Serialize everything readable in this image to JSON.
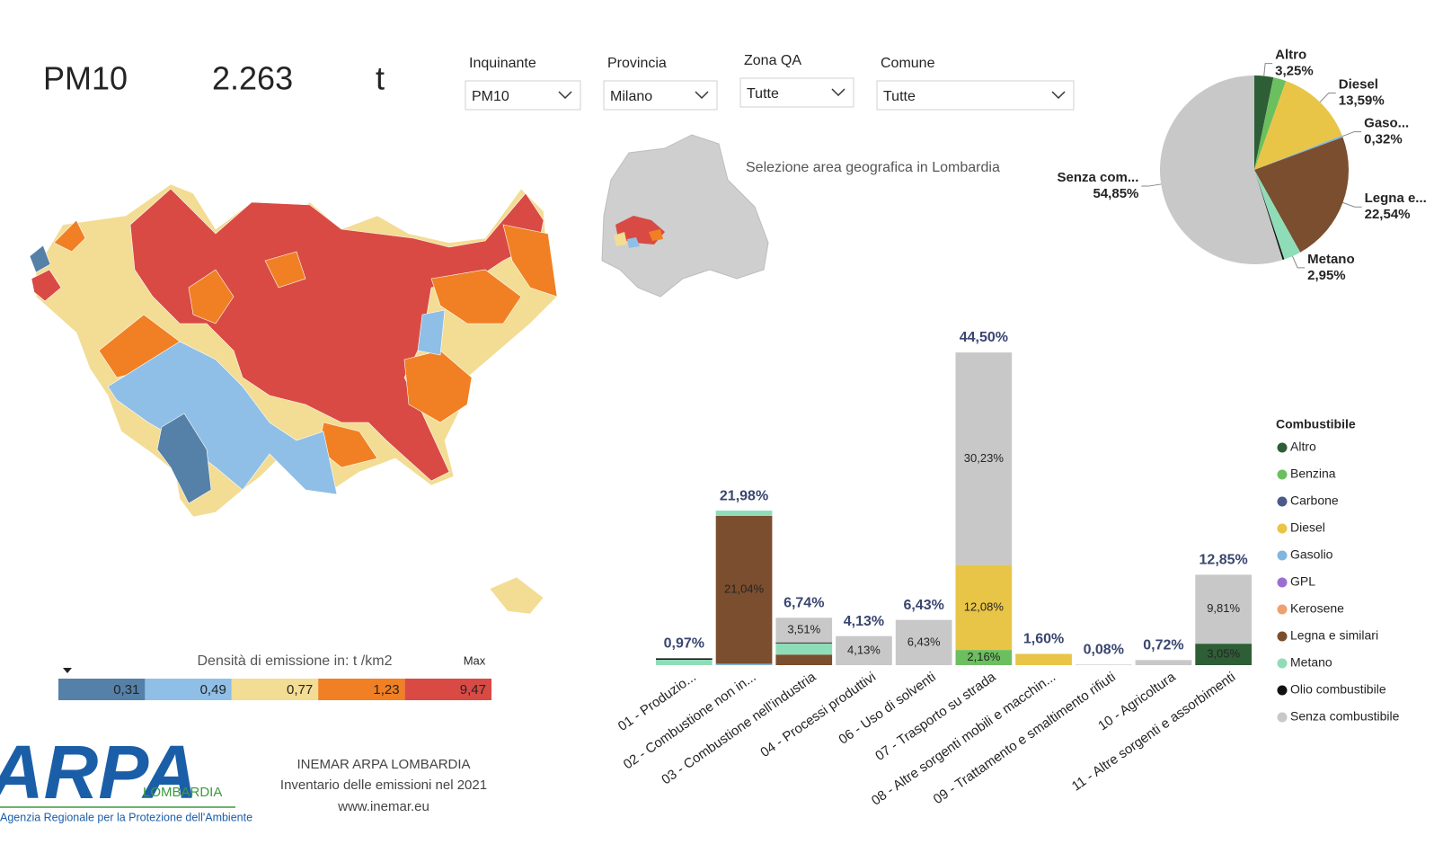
{
  "kpi": {
    "pollutant": "PM10",
    "value": "2.263",
    "unit": "t"
  },
  "filters": [
    {
      "label": "Inquinante",
      "value": "PM10"
    },
    {
      "label": "Provincia",
      "value": "Milano"
    },
    {
      "label": "Zona QA",
      "value": "Tutte"
    },
    {
      "label": "Comune",
      "value": "Tutte"
    }
  ],
  "minimap_caption": "Selezione area geografica in Lombardia",
  "map_legend": {
    "title": "Densità di emissione in: t  /km2",
    "max_label": "Max",
    "classes": [
      {
        "label": "0,31",
        "color": "#5580a8"
      },
      {
        "label": "0,49",
        "color": "#8fbfe6"
      },
      {
        "label": "0,77",
        "color": "#f3dc93"
      },
      {
        "label": "1,23",
        "color": "#f08023"
      },
      {
        "label": "9,47",
        "color": "#d94a44"
      }
    ]
  },
  "footer": {
    "logo": "ARPA",
    "logo_region": "LOMBARDIA",
    "logo_caption": "Agenzia Regionale per la Protezione dell'Ambiente",
    "lines": [
      "INEMAR ARPA LOMBARDIA",
      "Inventario delle emissioni nel 2021",
      "www.inemar.eu"
    ]
  },
  "chart_data": [
    {
      "type": "pie",
      "labels": [
        "Altro",
        null,
        "Diesel",
        "Gaso...",
        "Legna e...",
        "Metano",
        null,
        "Senza com..."
      ],
      "values": [
        3.25,
        2.2,
        13.59,
        0.32,
        22.54,
        2.95,
        0.3,
        54.85
      ],
      "value_labels": [
        "3,25%",
        null,
        "13,59%",
        "0,32%",
        "22,54%",
        "2,95%",
        null,
        "54,85%"
      ],
      "colors": [
        "#2e5e36",
        "#6cbf5f",
        "#e8c547",
        "#7fb6e0",
        "#7a4e2e",
        "#8fdcb8",
        "#111111",
        "#c8c8c8"
      ]
    },
    {
      "type": "bar",
      "stacked": true,
      "categories": [
        "01 - Produzio...",
        "02 - Combustione non in...",
        "03 - Combustione nell'industria",
        "04 - Processi produttivi",
        "06 - Uso di solventi",
        "07 - Trasporto su strada",
        "08 - Altre sorgenti mobili e macchin...",
        "09 - Trattamento e smaltimento rifiuti",
        "10 - Agricoltura",
        "11 - Altre sorgenti e assorbimenti"
      ],
      "totals": [
        0.97,
        21.98,
        6.74,
        4.13,
        6.43,
        44.5,
        1.6,
        0.08,
        0.72,
        12.85
      ],
      "total_labels": [
        "0,97%",
        "21,98%",
        "6,74%",
        "4,13%",
        "6,43%",
        "44,50%",
        "1,60%",
        "0,08%",
        "0,72%",
        "12,85%"
      ],
      "ylim": [
        0,
        45
      ],
      "legend_title": "Combustibile",
      "series": [
        {
          "name": "Altro",
          "color": "#2e5e36",
          "values": [
            null,
            null,
            null,
            null,
            null,
            null,
            null,
            null,
            null,
            3.05
          ],
          "value_labels": [
            null,
            null,
            null,
            null,
            null,
            null,
            null,
            null,
            null,
            "3,05%"
          ]
        },
        {
          "name": "Benzina",
          "color": "#6cbf5f",
          "values": [
            null,
            null,
            null,
            null,
            null,
            2.16,
            null,
            null,
            null,
            null
          ],
          "value_labels": [
            null,
            null,
            null,
            null,
            null,
            "2,16%",
            null,
            null,
            null,
            null
          ]
        },
        {
          "name": "Carbone",
          "color": "#4a5a8a",
          "values": [
            null,
            null,
            null,
            null,
            null,
            null,
            null,
            null,
            null,
            null
          ]
        },
        {
          "name": "Diesel",
          "color": "#e8c547",
          "values": [
            null,
            null,
            null,
            null,
            null,
            12.08,
            1.6,
            null,
            null,
            null
          ],
          "value_labels": [
            null,
            null,
            null,
            null,
            null,
            "12,08%",
            null,
            null,
            null,
            null
          ]
        },
        {
          "name": "Gasolio",
          "color": "#7fb6e0",
          "values": [
            null,
            0.2,
            null,
            null,
            null,
            null,
            null,
            null,
            null,
            null
          ]
        },
        {
          "name": "GPL",
          "color": "#9b6fd0",
          "values": [
            null,
            null,
            null,
            null,
            null,
            null,
            null,
            null,
            null,
            null
          ]
        },
        {
          "name": "Kerosene",
          "color": "#f0a070",
          "values": [
            null,
            null,
            null,
            null,
            null,
            null,
            null,
            null,
            null,
            null
          ]
        },
        {
          "name": "Legna e similari",
          "color": "#7a4e2e",
          "values": [
            null,
            21.04,
            1.5,
            null,
            null,
            null,
            null,
            null,
            null,
            null
          ],
          "value_labels": [
            null,
            "21,04%",
            null,
            null,
            null,
            null,
            null,
            null,
            null,
            null
          ]
        },
        {
          "name": "Metano",
          "color": "#8fdcb8",
          "values": [
            0.77,
            0.74,
            1.6,
            null,
            null,
            null,
            null,
            null,
            null,
            null
          ]
        },
        {
          "name": "Olio combustibile",
          "color": "#111111",
          "values": [
            0.2,
            null,
            0.13,
            null,
            null,
            null,
            null,
            null,
            null,
            null
          ]
        },
        {
          "name": "Senza combustibile",
          "color": "#c8c8c8",
          "values": [
            null,
            null,
            3.51,
            4.13,
            6.43,
            30.23,
            null,
            0.08,
            0.72,
            9.81
          ],
          "value_labels": [
            null,
            null,
            "3,51%",
            "4,13%",
            "6,43%",
            "30,23%",
            null,
            null,
            null,
            "9,81%"
          ]
        }
      ]
    }
  ]
}
